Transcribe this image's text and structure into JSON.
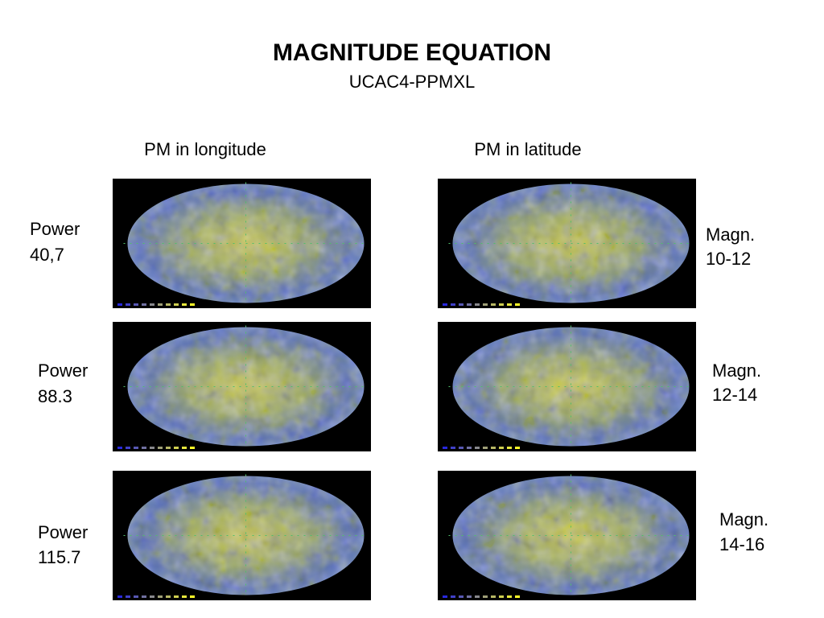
{
  "header": {
    "title": "MAGNITUDE EQUATION",
    "subtitle": "UCAC4-PPMXL"
  },
  "columns": [
    "PM in longitude",
    "PM in latitude"
  ],
  "rows": [
    {
      "power": [
        "Power",
        "40,7"
      ],
      "magnitude": [
        "Magn.",
        "10-12"
      ]
    },
    {
      "power": [
        "Power",
        "88.3"
      ],
      "magnitude": [
        "Magn.",
        "12-14"
      ]
    },
    {
      "power": [
        "Power",
        "115.7"
      ],
      "magnitude": [
        "Magn.",
        "14-16"
      ]
    }
  ]
}
